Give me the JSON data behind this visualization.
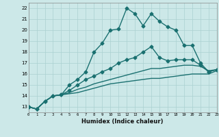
{
  "xlabel": "Humidex (Indice chaleur)",
  "xlim": [
    0,
    23
  ],
  "ylim": [
    12.5,
    22.5
  ],
  "xticks": [
    0,
    1,
    2,
    3,
    4,
    5,
    6,
    7,
    8,
    9,
    10,
    11,
    12,
    13,
    14,
    15,
    16,
    17,
    18,
    19,
    20,
    21,
    22,
    23
  ],
  "yticks": [
    13,
    14,
    15,
    16,
    17,
    18,
    19,
    20,
    21,
    22
  ],
  "background_color": "#cce8e8",
  "grid_color": "#aad0d0",
  "line_color": "#1a7070",
  "lines": [
    {
      "x": [
        0,
        1,
        2,
        3,
        4,
        5,
        6,
        7,
        8,
        9,
        10,
        11,
        12,
        13,
        14,
        15,
        16,
        17,
        18,
        19,
        20,
        21,
        22,
        23
      ],
      "y": [
        13.0,
        12.8,
        13.5,
        14.0,
        14.1,
        15.0,
        15.5,
        16.2,
        18.0,
        18.8,
        20.0,
        20.1,
        22.0,
        21.5,
        20.4,
        21.5,
        20.8,
        20.3,
        20.0,
        18.6,
        18.6,
        17.0,
        16.2,
        16.4
      ],
      "marker": "D",
      "markersize": 2.5,
      "linewidth": 1.0
    },
    {
      "x": [
        0,
        1,
        2,
        3,
        4,
        5,
        6,
        7,
        8,
        9,
        10,
        11,
        12,
        13,
        14,
        15,
        16,
        17,
        18,
        19,
        20,
        21,
        22,
        23
      ],
      "y": [
        13.0,
        12.8,
        13.5,
        14.0,
        14.1,
        14.5,
        15.0,
        15.5,
        15.8,
        16.2,
        16.5,
        17.0,
        17.3,
        17.5,
        18.0,
        18.5,
        17.5,
        17.2,
        17.3,
        17.3,
        17.3,
        16.8,
        16.2,
        16.4
      ],
      "marker": "D",
      "markersize": 2.5,
      "linewidth": 1.0
    },
    {
      "x": [
        0,
        1,
        2,
        3,
        4,
        5,
        6,
        7,
        8,
        9,
        10,
        11,
        12,
        13,
        14,
        15,
        16,
        17,
        18,
        19,
        20,
        21,
        22,
        23
      ],
      "y": [
        13.0,
        12.8,
        13.5,
        14.0,
        14.1,
        14.3,
        14.6,
        14.8,
        15.1,
        15.3,
        15.5,
        15.7,
        15.9,
        16.1,
        16.3,
        16.5,
        16.5,
        16.6,
        16.7,
        16.8,
        16.8,
        16.7,
        16.3,
        16.4
      ],
      "marker": null,
      "markersize": 0,
      "linewidth": 1.0
    },
    {
      "x": [
        0,
        1,
        2,
        3,
        4,
        5,
        6,
        7,
        8,
        9,
        10,
        11,
        12,
        13,
        14,
        15,
        16,
        17,
        18,
        19,
        20,
        21,
        22,
        23
      ],
      "y": [
        13.0,
        12.8,
        13.5,
        14.0,
        14.1,
        14.2,
        14.3,
        14.5,
        14.7,
        14.9,
        15.1,
        15.2,
        15.3,
        15.4,
        15.5,
        15.6,
        15.6,
        15.7,
        15.8,
        15.9,
        16.0,
        16.0,
        16.0,
        16.3
      ],
      "marker": null,
      "markersize": 0,
      "linewidth": 1.0
    }
  ]
}
